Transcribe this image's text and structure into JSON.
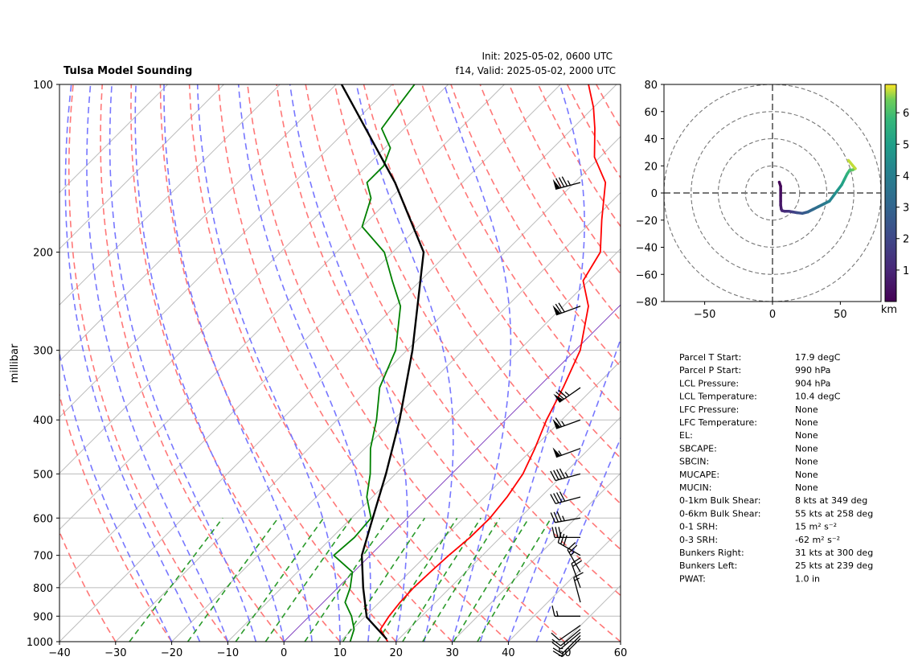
{
  "title": "Tulsa Model Sounding",
  "init": "Init: 2025-05-02, 0600 UTC",
  "valid": "f14, Valid: 2025-05-02, 2000 UTC",
  "chart_data": [
    {
      "type": "line",
      "subtype": "skew-T log-P",
      "ylabel": "millibar",
      "y_scale": "log",
      "xlim": [
        -40,
        60
      ],
      "ylim": [
        1000,
        100
      ],
      "x_ticks": [
        -40,
        -30,
        -20,
        -10,
        0,
        10,
        20,
        30,
        40,
        50,
        60
      ],
      "y_ticks": [
        100,
        200,
        300,
        400,
        500,
        600,
        700,
        800,
        900,
        1000
      ],
      "colors": {
        "temperature": "#ff0000",
        "dewpoint": "#008000",
        "parcel": "#000000",
        "dry_adiabats": "#ff7070",
        "moist_adiabats": "#7070ff",
        "mixing_ratio": "#2a9a2a",
        "isotherms": "#bbbbbb",
        "zero_isotherm": "#8040c0"
      },
      "series": [
        {
          "name": "temperature",
          "points": [
            [
              18.5,
              1000
            ],
            [
              15,
              950
            ],
            [
              14.2,
              900
            ],
            [
              13.7,
              850
            ],
            [
              13.5,
              800
            ],
            [
              13.7,
              750
            ],
            [
              14,
              700
            ],
            [
              14.6,
              650
            ],
            [
              14.7,
              600
            ],
            [
              14,
              550
            ],
            [
              12.7,
              500
            ],
            [
              10.3,
              450
            ],
            [
              7.3,
              400
            ],
            [
              4.5,
              350
            ],
            [
              0.9,
              300
            ],
            [
              -5.5,
              250
            ],
            [
              -11,
              225
            ],
            [
              -13,
              200
            ],
            [
              -18.5,
              175
            ],
            [
              -24.5,
              150
            ],
            [
              -31,
              135
            ],
            [
              -36,
              120
            ],
            [
              -40,
              110
            ],
            [
              -45,
              100
            ]
          ]
        },
        {
          "name": "dewpoint",
          "points": [
            [
              11.8,
              1000
            ],
            [
              10.3,
              950
            ],
            [
              7.5,
              900
            ],
            [
              3.9,
              850
            ],
            [
              2.2,
              800
            ],
            [
              -0.2,
              750
            ],
            [
              -6.5,
              700
            ],
            [
              -6,
              650
            ],
            [
              -6.5,
              600
            ],
            [
              -11,
              550
            ],
            [
              -14.5,
              500
            ],
            [
              -19,
              450
            ],
            [
              -23,
              400
            ],
            [
              -28.2,
              350
            ],
            [
              -32,
              300
            ],
            [
              -39,
              250
            ],
            [
              -45,
              225
            ],
            [
              -51.5,
              200
            ],
            [
              -60,
              180
            ],
            [
              -63.5,
              160
            ],
            [
              -67,
              150
            ],
            [
              -67,
              140
            ],
            [
              -69,
              130
            ],
            [
              -74,
              120
            ],
            [
              -75,
              110
            ],
            [
              -76,
              100
            ]
          ]
        },
        {
          "name": "parcel",
          "points": [
            [
              17.9,
              990
            ],
            [
              10.4,
              904
            ],
            [
              4.5,
              800
            ],
            [
              -1.5,
              700
            ],
            [
              -6.2,
              600
            ],
            [
              -11.7,
              500
            ],
            [
              -18.9,
              400
            ],
            [
              -29,
              300
            ],
            [
              -44.5,
              200
            ],
            [
              -62,
              150
            ],
            [
              -89,
              100
            ]
          ]
        }
      ],
      "wind_barbs": [
        {
          "p": 987,
          "speed": 10,
          "direction": 225
        },
        {
          "p": 975,
          "speed": 10,
          "direction": 225
        },
        {
          "p": 962,
          "speed": 10,
          "direction": 230
        },
        {
          "p": 950,
          "speed": 10,
          "direction": 230
        },
        {
          "p": 935,
          "speed": 10,
          "direction": 235
        },
        {
          "p": 900,
          "speed": 15,
          "direction": 270
        },
        {
          "p": 850,
          "speed": 15,
          "direction": 345
        },
        {
          "p": 800,
          "speed": 20,
          "direction": 340
        },
        {
          "p": 750,
          "speed": 25,
          "direction": 330
        },
        {
          "p": 700,
          "speed": 30,
          "direction": 300
        },
        {
          "p": 650,
          "speed": 30,
          "direction": 270
        },
        {
          "p": 600,
          "speed": 35,
          "direction": 260
        },
        {
          "p": 550,
          "speed": 40,
          "direction": 255
        },
        {
          "p": 500,
          "speed": 45,
          "direction": 255
        },
        {
          "p": 450,
          "speed": 55,
          "direction": 250
        },
        {
          "p": 400,
          "speed": 65,
          "direction": 250
        },
        {
          "p": 350,
          "speed": 75,
          "direction": 235
        },
        {
          "p": 250,
          "speed": 70,
          "direction": 250
        },
        {
          "p": 150,
          "speed": 85,
          "direction": 255
        }
      ]
    },
    {
      "type": "line",
      "subtype": "hodograph",
      "xlim": [
        -80,
        80
      ],
      "ylim": [
        -80,
        80
      ],
      "x_ticks": [
        -50,
        0,
        50
      ],
      "y_ticks": [
        80,
        60,
        40,
        20,
        0,
        -20,
        -40,
        -60,
        -80
      ],
      "rings": [
        20,
        40,
        60,
        80
      ],
      "colorbar": {
        "label": "km",
        "ticks": [
          1,
          2,
          3,
          4,
          5,
          6
        ],
        "min": 0,
        "max": 6.9,
        "colormap": "viridis"
      },
      "series": [
        {
          "name": "wind profile",
          "points": [
            [
              5,
              8,
              0.0
            ],
            [
              6,
              5,
              0.1
            ],
            [
              6,
              2,
              0.2
            ],
            [
              6,
              -2,
              0.3
            ],
            [
              6,
              -6,
              0.4
            ],
            [
              6,
              -9,
              0.5
            ],
            [
              6.5,
              -12,
              0.6
            ],
            [
              7,
              -13,
              0.8
            ],
            [
              9,
              -13.5,
              1.0
            ],
            [
              12,
              -13.5,
              1.2
            ],
            [
              15,
              -14,
              1.5
            ],
            [
              18,
              -14.5,
              1.8
            ],
            [
              22,
              -15,
              2.2
            ],
            [
              26,
              -14,
              2.6
            ],
            [
              30,
              -12,
              3.0
            ],
            [
              34,
              -10,
              3.3
            ],
            [
              38,
              -8,
              3.6
            ],
            [
              42,
              -6,
              3.9
            ],
            [
              45,
              -2,
              4.2
            ],
            [
              48,
              2,
              4.5
            ],
            [
              51,
              6,
              4.8
            ],
            [
              53,
              10,
              5.1
            ],
            [
              55,
              14,
              5.4
            ],
            [
              57,
              17,
              5.7
            ],
            [
              59,
              17,
              6.0
            ],
            [
              61,
              18,
              6.3
            ],
            [
              56,
              24,
              6.7
            ]
          ]
        }
      ]
    }
  ],
  "params": [
    {
      "label": "Parcel T Start:",
      "value": "17.9 degC"
    },
    {
      "label": "Parcel P Start:",
      "value": "990 hPa"
    },
    {
      "label": "LCL Pressure:",
      "value": "904 hPa"
    },
    {
      "label": "LCL Temperature:",
      "value": "10.4 degC"
    },
    {
      "label": "LFC Pressure:",
      "value": "None"
    },
    {
      "label": "LFC Temperature:",
      "value": "None"
    },
    {
      "label": "EL:",
      "value": "None"
    },
    {
      "label": "SBCAPE:",
      "value": "None"
    },
    {
      "label": "SBCIN:",
      "value": "None"
    },
    {
      "label": "MUCAPE:",
      "value": "None"
    },
    {
      "label": "MUCIN:",
      "value": "None"
    },
    {
      "label": "0-1km Bulk Shear:",
      "value": "8 kts at 349 deg"
    },
    {
      "label": "0-6km Bulk Shear:",
      "value": "55 kts at 258 deg"
    },
    {
      "label": "0-1 SRH:",
      "value": "15 m² s⁻²"
    },
    {
      "label": "0-3 SRH:",
      "value": "-62 m² s⁻²"
    },
    {
      "label": "Bunkers Right:",
      "value": "31 kts at 300 deg"
    },
    {
      "label": "Bunkers Left:",
      "value": "25 kts at 239 deg"
    },
    {
      "label": "PWAT:",
      "value": "1.0 in"
    }
  ]
}
